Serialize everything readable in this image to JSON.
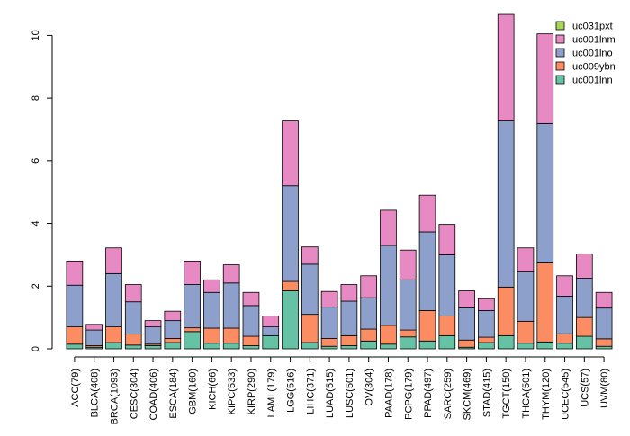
{
  "chart_data": {
    "type": "bar",
    "stacked": true,
    "title": "",
    "xlabel": "",
    "ylabel": "",
    "ylim": [
      0,
      10.7
    ],
    "yticks": [
      0,
      2,
      4,
      6,
      8,
      10
    ],
    "legend_position": "top-right",
    "categories": [
      "ACC(79)",
      "BLCA(408)",
      "BRCA(1093)",
      "CESC(304)",
      "COAD(406)",
      "ESCA(184)",
      "GBM(160)",
      "KICH(66)",
      "KIPC(533)",
      "KIRP(290)",
      "LAML(179)",
      "LGG(516)",
      "LIHC(371)",
      "LUAD(515)",
      "LUSC(501)",
      "OV(304)",
      "PAAD(178)",
      "PCPG(179)",
      "PPAD(497)",
      "SARC(259)",
      "SKCM(469)",
      "STAD(415)",
      "TGCT(150)",
      "THCA(501)",
      "THYM(120)",
      "UCEC(545)",
      "UCS(57)",
      "UVM(80)"
    ],
    "series": [
      {
        "name": "uc001lnn",
        "color": "#66c2a5",
        "values": [
          0.15,
          0.05,
          0.2,
          0.12,
          0.1,
          0.2,
          0.55,
          0.18,
          0.18,
          0.1,
          0.42,
          1.85,
          0.2,
          0.08,
          0.1,
          0.25,
          0.15,
          0.38,
          0.25,
          0.42,
          0.05,
          0.2,
          0.42,
          0.18,
          0.22,
          0.18,
          0.4,
          0.08
        ]
      },
      {
        "name": "uc009ybn",
        "color": "#fc8d62",
        "values": [
          0.55,
          0.05,
          0.5,
          0.35,
          0.05,
          0.13,
          0.12,
          0.48,
          0.48,
          0.3,
          0.0,
          0.3,
          0.9,
          0.25,
          0.32,
          0.38,
          0.6,
          0.22,
          0.97,
          0.63,
          0.23,
          0.17,
          1.55,
          0.7,
          2.52,
          0.3,
          0.6,
          0.24
        ]
      },
      {
        "name": "uc001lno",
        "color": "#8da0cb",
        "values": [
          1.33,
          0.5,
          1.7,
          1.03,
          0.55,
          0.57,
          1.38,
          1.14,
          1.44,
          0.98,
          0.28,
          3.05,
          1.6,
          1.0,
          1.1,
          1.0,
          2.55,
          1.6,
          2.51,
          1.95,
          1.03,
          0.85,
          5.3,
          1.57,
          4.45,
          1.2,
          1.25,
          0.98
        ]
      },
      {
        "name": "uc001lnm",
        "color": "#e78ac3",
        "values": [
          0.77,
          0.18,
          0.82,
          0.55,
          0.2,
          0.3,
          0.75,
          0.4,
          0.58,
          0.42,
          0.35,
          2.07,
          0.55,
          0.5,
          0.53,
          0.7,
          1.12,
          0.95,
          1.17,
          0.97,
          0.54,
          0.38,
          3.4,
          0.77,
          2.86,
          0.65,
          0.78,
          0.5
        ]
      },
      {
        "name": "uc031pxt",
        "color": "#a6d854",
        "values": [
          0,
          0,
          0,
          0,
          0,
          0,
          0,
          0,
          0,
          0,
          0,
          0,
          0,
          0,
          0,
          0,
          0,
          0,
          0,
          0,
          0,
          0,
          0,
          0,
          0,
          0,
          0,
          0
        ]
      }
    ],
    "legend_order": [
      "uc031pxt",
      "uc001lnm",
      "uc001lno",
      "uc009ybn",
      "uc001lnn"
    ]
  }
}
